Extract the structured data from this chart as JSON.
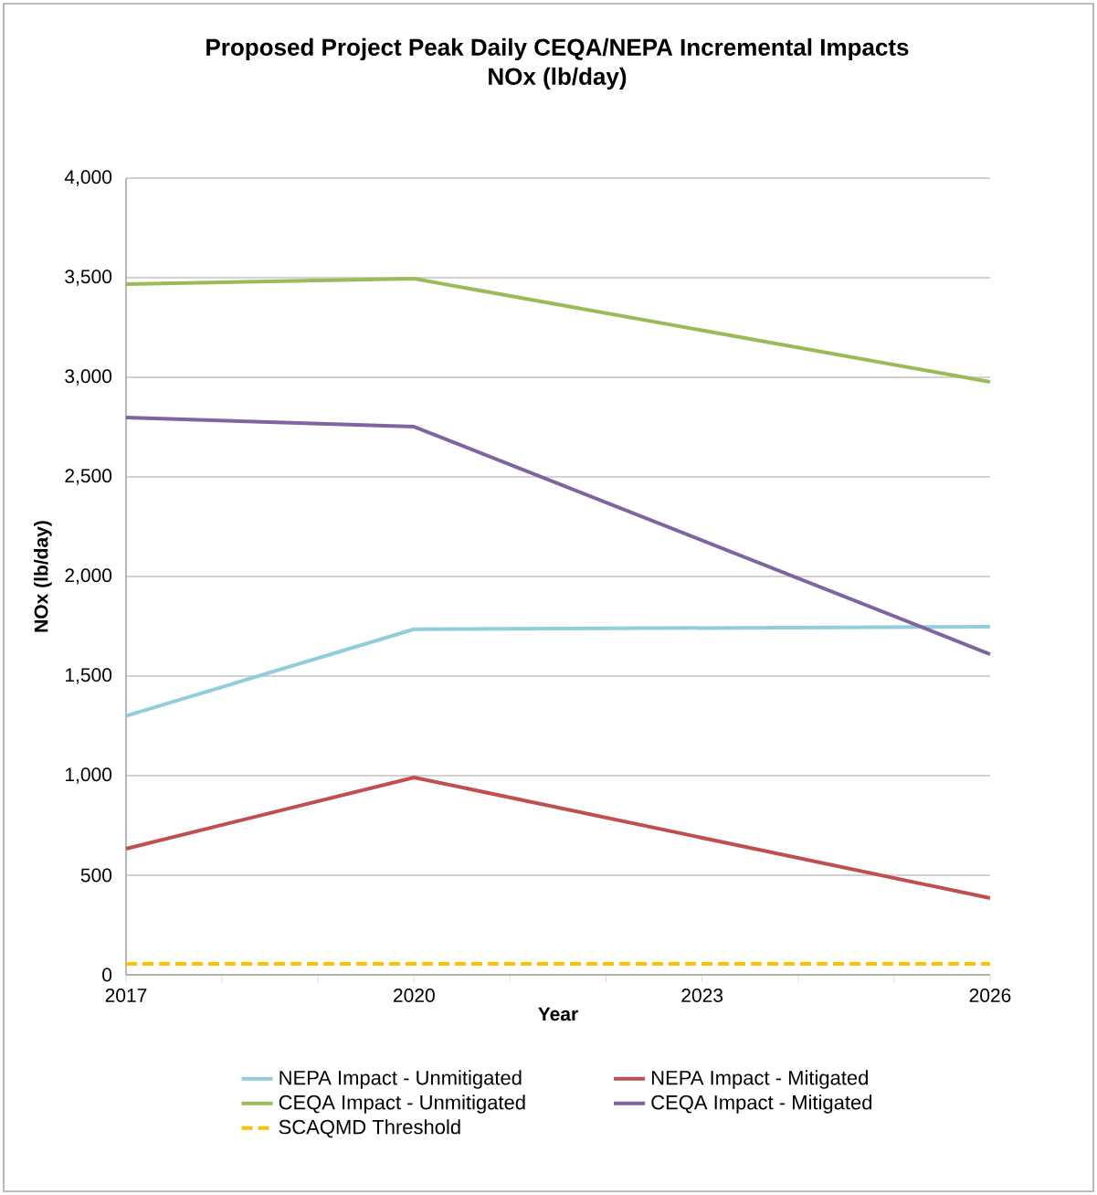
{
  "chart_data": {
    "type": "line",
    "title": "Proposed Project Peak Daily CEQA/NEPA Incremental Impacts",
    "subtitle": "NOx (lb/day)",
    "xlabel": "Year",
    "ylabel": "NOx (lb/day)",
    "x": [
      2017,
      2020,
      2026
    ],
    "series": [
      {
        "name": "NEPA Impact - Unmitigated",
        "color": "#92cddc",
        "values": [
          1300,
          1735,
          1748
        ]
      },
      {
        "name": "NEPA Impact - Mitigated",
        "color": "#c0504d",
        "values": [
          633,
          991,
          385
        ]
      },
      {
        "name": "CEQA Impact - Unmitigated",
        "color": "#9bbb59",
        "values": [
          3468,
          3495,
          2977
        ]
      },
      {
        "name": "CEQA Impact - Mitigated",
        "color": "#8064a2",
        "values": [
          2798,
          2752,
          1610
        ]
      },
      {
        "name": "SCAQMD Threshold",
        "color": "#ffc000",
        "values": [
          55,
          55,
          55
        ],
        "line_style": "dashed"
      }
    ],
    "xlim": [
      2017,
      2026
    ],
    "xticks": [
      2017,
      {
        "value": 2018,
        "label": null
      },
      {
        "value": 2019,
        "label": null
      },
      2020,
      {
        "value": 2021,
        "label": null
      },
      {
        "value": 2022,
        "label": null
      },
      2023,
      {
        "value": 2024,
        "label": null
      },
      {
        "value": 2025,
        "label": null
      },
      2026
    ],
    "ylim": [
      0,
      4000
    ],
    "yticks": [
      0,
      500,
      {
        "value": 1000,
        "label": "1,000"
      },
      {
        "value": 1500,
        "label": "1,500"
      },
      {
        "value": 2000,
        "label": "2,000"
      },
      {
        "value": 2500,
        "label": "2,500"
      },
      {
        "value": 3000,
        "label": "3,000"
      },
      {
        "value": 3500,
        "label": "3,500"
      },
      {
        "value": 4000,
        "label": "4,000"
      }
    ],
    "grid": "y",
    "legend": "bottom",
    "marker": "none",
    "line_style": "solid"
  }
}
